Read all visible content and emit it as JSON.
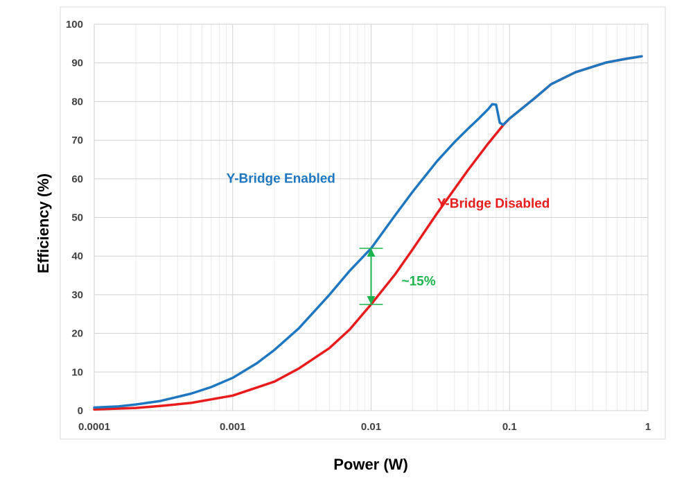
{
  "chart_data": {
    "type": "line",
    "xlabel": "Power (W)",
    "ylabel": "Efficiency (%)",
    "x_scale": "log",
    "xlim": [
      0.0001,
      1
    ],
    "ylim": [
      0,
      100
    ],
    "grid": true,
    "legend": "inline labels",
    "x_ticks": [
      "0.0001",
      "0.001",
      "0.01",
      "0.1",
      "1"
    ],
    "y_ticks": [
      "0",
      "10",
      "20",
      "30",
      "40",
      "50",
      "60",
      "70",
      "80",
      "90",
      "100"
    ],
    "series": [
      {
        "name": "Y-Bridge Enabled",
        "color": "#1f77c0",
        "x": [
          0.0001,
          0.00015,
          0.0002,
          0.0003,
          0.0005,
          0.0007,
          0.001,
          0.0015,
          0.002,
          0.003,
          0.005,
          0.007,
          0.01,
          0.015,
          0.02,
          0.03,
          0.04,
          0.05,
          0.06,
          0.07,
          0.075,
          0.08,
          0.085,
          0.09,
          0.1,
          0.15,
          0.2,
          0.3,
          0.5,
          0.7,
          0.9
        ],
        "y": [
          0.8,
          1.1,
          1.6,
          2.5,
          4.4,
          6.1,
          8.5,
          12.3,
          15.7,
          21.3,
          30.0,
          36.2,
          42.0,
          50.7,
          56.7,
          64.6,
          69.5,
          72.9,
          75.6,
          78.0,
          79.3,
          79.2,
          74.5,
          74.0,
          75.6,
          80.7,
          84.5,
          87.6,
          90.1,
          91.1,
          91.7
        ]
      },
      {
        "name": "Y-Bridge Disabled",
        "color": "#e81c1c",
        "x": [
          0.0001,
          0.0002,
          0.0003,
          0.0005,
          0.001,
          0.002,
          0.003,
          0.005,
          0.007,
          0.01,
          0.015,
          0.02,
          0.03,
          0.05,
          0.07,
          0.09,
          0.1,
          0.15,
          0.2,
          0.3,
          0.5,
          0.7,
          0.9
        ],
        "y": [
          0.3,
          0.7,
          1.2,
          2.0,
          3.9,
          7.5,
          10.9,
          16.2,
          21.0,
          27.5,
          35.4,
          41.8,
          51.1,
          62.2,
          69.1,
          73.9,
          75.6,
          80.7,
          84.5,
          87.6,
          90.1,
          91.1,
          91.7
        ]
      }
    ],
    "annotations": [
      {
        "text": "~15%",
        "x": 0.01,
        "y_from": 42,
        "y_to": 27.5,
        "color": "#1db34f"
      }
    ]
  }
}
